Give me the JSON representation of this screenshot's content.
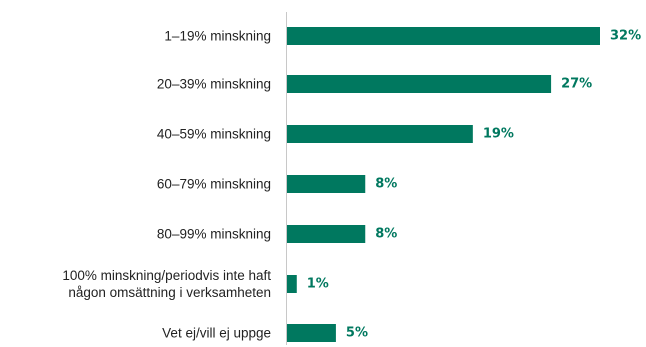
{
  "chart_data": {
    "type": "bar",
    "orientation": "horizontal",
    "categories": [
      [
        "1–19% minskning"
      ],
      [
        "20–39% minskning"
      ],
      [
        "40–59% minskning"
      ],
      [
        "60–79% minskning"
      ],
      [
        "80–99% minskning"
      ],
      [
        "100% minskning/periodvis inte haft",
        "någon omsättning i verksamheten"
      ],
      [
        "Vet ej/vill ej uppge"
      ]
    ],
    "values": [
      32,
      27,
      19,
      8,
      8,
      1,
      5
    ],
    "value_labels": [
      "32%",
      "27%",
      "19%",
      "8%",
      "8%",
      "1%",
      "5%"
    ],
    "title": "",
    "xlabel": "",
    "ylabel": "",
    "xlim": [
      0,
      32
    ],
    "grid": false,
    "legend": "none",
    "colors": {
      "bar": "#00785F",
      "value_label": "#00785F",
      "category_label": "#222222",
      "axis": "#c8c8c8"
    }
  }
}
